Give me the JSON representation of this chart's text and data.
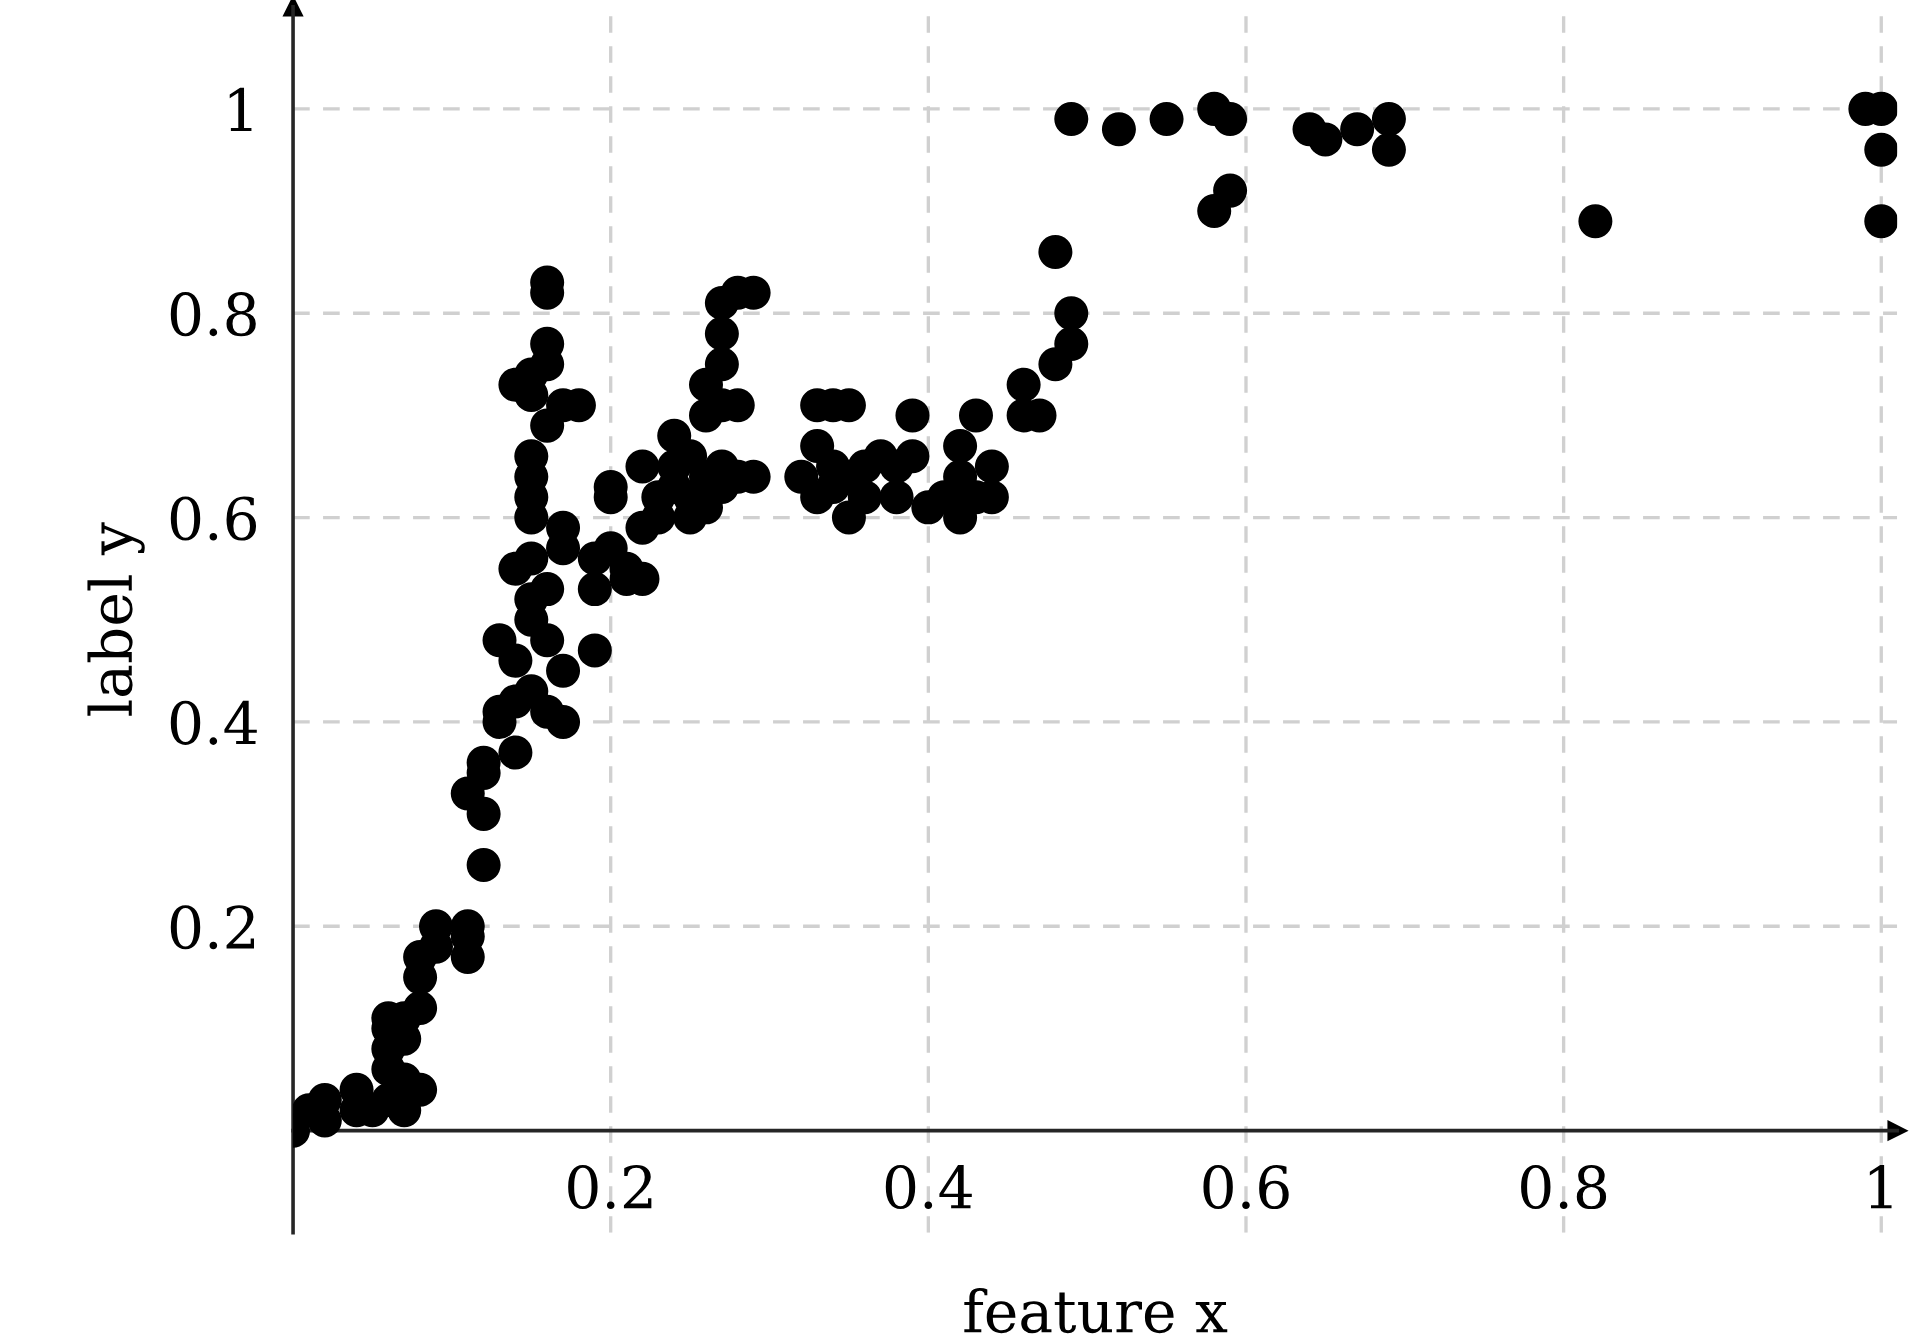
{
  "chart_data": {
    "type": "scatter",
    "xlabel": "feature x",
    "ylabel": "label y",
    "xlim": [
      0,
      1.01
    ],
    "ylim": [
      -0.1,
      1.1
    ],
    "xticks": [
      0.2,
      0.4,
      0.6,
      0.8,
      1
    ],
    "yticks": [
      0.2,
      0.4,
      0.6,
      0.8,
      1
    ],
    "grid": true,
    "marker": "circle",
    "series": [
      {
        "color": "#000000",
        "x": [
          0,
          0.01,
          0.02,
          0.02,
          0.04,
          0.04,
          0.05,
          0.06,
          0.06,
          0.06,
          0.06,
          0.06,
          0.07,
          0.07,
          0.07,
          0.07,
          0.08,
          0.08,
          0.08,
          0.08,
          0.09,
          0.09,
          0.11,
          0.11,
          0.11,
          0.11,
          0.12,
          0.12,
          0.12,
          0.12,
          0.13,
          0.13,
          0.13,
          0.14,
          0.14,
          0.14,
          0.14,
          0.14,
          0.15,
          0.15,
          0.15,
          0.15,
          0.15,
          0.15,
          0.15,
          0.15,
          0.15,
          0.15,
          0.16,
          0.16,
          0.16,
          0.16,
          0.16,
          0.16,
          0.16,
          0.16,
          0.17,
          0.17,
          0.17,
          0.17,
          0.17,
          0.18,
          0.19,
          0.19,
          0.19,
          0.2,
          0.2,
          0.2,
          0.21,
          0.21,
          0.22,
          0.22,
          0.22,
          0.23,
          0.23,
          0.24,
          0.24,
          0.24,
          0.25,
          0.25,
          0.25,
          0.26,
          0.26,
          0.26,
          0.26,
          0.27,
          0.27,
          0.27,
          0.27,
          0.27,
          0.27,
          0.28,
          0.28,
          0.28,
          0.29,
          0.29,
          0.32,
          0.33,
          0.33,
          0.33,
          0.34,
          0.34,
          0.34,
          0.35,
          0.35,
          0.35,
          0.36,
          0.36,
          0.37,
          0.38,
          0.38,
          0.39,
          0.39,
          0.4,
          0.41,
          0.42,
          0.42,
          0.42,
          0.43,
          0.43,
          0.44,
          0.44,
          0.46,
          0.46,
          0.47,
          0.48,
          0.48,
          0.49,
          0.49,
          0.49,
          0.52,
          0.55,
          0.58,
          0.58,
          0.59,
          0.59,
          0.64,
          0.65,
          0.67,
          0.69,
          0.69,
          0.82,
          0.99,
          1.0,
          1.0,
          1.0
        ],
        "values": [
          0,
          0.02,
          0.03,
          0.01,
          0.02,
          0.04,
          0.02,
          0.03,
          0.06,
          0.08,
          0.1,
          0.11,
          0.02,
          0.09,
          0.11,
          0.05,
          0.04,
          0.12,
          0.15,
          0.17,
          0.18,
          0.2,
          0.17,
          0.2,
          0.19,
          0.33,
          0.31,
          0.35,
          0.26,
          0.36,
          0.4,
          0.41,
          0.48,
          0.37,
          0.42,
          0.46,
          0.55,
          0.73,
          0.43,
          0.5,
          0.52,
          0.56,
          0.6,
          0.62,
          0.64,
          0.66,
          0.74,
          0.72,
          0.41,
          0.48,
          0.53,
          0.69,
          0.75,
          0.77,
          0.82,
          0.83,
          0.4,
          0.45,
          0.57,
          0.59,
          0.71,
          0.71,
          0.47,
          0.53,
          0.56,
          0.57,
          0.62,
          0.63,
          0.55,
          0.54,
          0.54,
          0.59,
          0.65,
          0.6,
          0.62,
          0.63,
          0.65,
          0.68,
          0.6,
          0.62,
          0.66,
          0.61,
          0.64,
          0.7,
          0.73,
          0.63,
          0.65,
          0.71,
          0.75,
          0.78,
          0.81,
          0.64,
          0.71,
          0.82,
          0.64,
          0.82,
          0.64,
          0.62,
          0.67,
          0.71,
          0.63,
          0.65,
          0.71,
          0.6,
          0.64,
          0.71,
          0.62,
          0.65,
          0.66,
          0.62,
          0.65,
          0.7,
          0.66,
          0.61,
          0.62,
          0.6,
          0.64,
          0.67,
          0.62,
          0.7,
          0.62,
          0.65,
          0.7,
          0.73,
          0.7,
          0.75,
          0.86,
          0.77,
          0.8,
          0.99,
          0.98,
          0.99,
          1.0,
          0.9,
          0.99,
          0.92,
          0.98,
          0.97,
          0.98,
          0.99,
          0.96,
          0.89,
          1.0,
          1.0,
          0.96,
          0.89
        ]
      }
    ]
  }
}
